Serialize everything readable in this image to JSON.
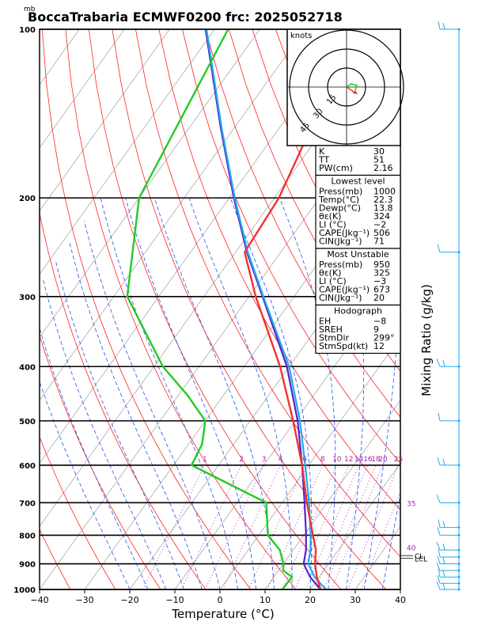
{
  "title": "BoccaTrabaria ECMWF0200 frc: 2025052718",
  "pressure_unit": "mb",
  "chart_data": {
    "type": "skew-t",
    "xlabel": "Temperature (°C)",
    "ylabel_right": "Mixing Ratio (g/kg)",
    "x_ticks": [
      -40,
      -30,
      -20,
      -10,
      0,
      10,
      20,
      30,
      40
    ],
    "p_ticks": [
      100,
      200,
      300,
      400,
      500,
      600,
      700,
      800,
      900,
      1000
    ],
    "temperature": [
      {
        "p": 1000,
        "t": 22.3
      },
      {
        "p": 950,
        "t": 19.5
      },
      {
        "p": 900,
        "t": 17.0
      },
      {
        "p": 850,
        "t": 15.0
      },
      {
        "p": 800,
        "t": 12.0
      },
      {
        "p": 700,
        "t": 5.5
      },
      {
        "p": 600,
        "t": -1.5
      },
      {
        "p": 500,
        "t": -10.5
      },
      {
        "p": 400,
        "t": -22.0
      },
      {
        "p": 300,
        "t": -38.5
      },
      {
        "p": 250,
        "t": -48.0
      },
      {
        "p": 200,
        "t": -49.0
      },
      {
        "p": 150,
        "t": -53.0
      },
      {
        "p": 100,
        "t": -58.0
      }
    ],
    "dewpoint": [
      {
        "p": 1000,
        "t": 13.8
      },
      {
        "p": 950,
        "t": 14.0
      },
      {
        "p": 925,
        "t": 11.0
      },
      {
        "p": 900,
        "t": 10.0
      },
      {
        "p": 850,
        "t": 7.0
      },
      {
        "p": 800,
        "t": 2.0
      },
      {
        "p": 700,
        "t": -3.5
      },
      {
        "p": 600,
        "t": -26.0
      },
      {
        "p": 550,
        "t": -27.0
      },
      {
        "p": 500,
        "t": -30.0
      },
      {
        "p": 450,
        "t": -38.0
      },
      {
        "p": 400,
        "t": -48.0
      },
      {
        "p": 300,
        "t": -67.0
      },
      {
        "p": 200,
        "t": -80.0
      },
      {
        "p": 100,
        "t": -87.0
      }
    ],
    "parcel": [
      {
        "p": 1000,
        "t": 22.3
      },
      {
        "p": 950,
        "t": 18.0
      },
      {
        "p": 900,
        "t": 14.5
      },
      {
        "p": 850,
        "t": 12.8
      },
      {
        "p": 800,
        "t": 10.5
      },
      {
        "p": 700,
        "t": 5.0
      },
      {
        "p": 600,
        "t": -1.5
      },
      {
        "p": 500,
        "t": -9.5
      },
      {
        "p": 400,
        "t": -20.5
      },
      {
        "p": 300,
        "t": -37.0
      },
      {
        "p": 250,
        "t": -47.5
      },
      {
        "p": 200,
        "t": -59.0
      },
      {
        "p": 150,
        "t": -73.0
      },
      {
        "p": 100,
        "t": -92.0
      }
    ],
    "virtual_parcel": [
      {
        "p": 1000,
        "t": 23.5
      },
      {
        "p": 950,
        "t": 19.0
      },
      {
        "p": 900,
        "t": 15.5
      },
      {
        "p": 850,
        "t": 13.8
      },
      {
        "p": 800,
        "t": 11.5
      },
      {
        "p": 700,
        "t": 6.0
      },
      {
        "p": 600,
        "t": -0.8
      },
      {
        "p": 500,
        "t": -9.0
      },
      {
        "p": 400,
        "t": -20.0
      },
      {
        "p": 300,
        "t": -36.8
      },
      {
        "p": 250,
        "t": -47.3
      },
      {
        "p": 200,
        "t": -58.8
      },
      {
        "p": 150,
        "t": -72.8
      },
      {
        "p": 100,
        "t": -91.8
      }
    ],
    "mixing_ratio_labels": [
      "1",
      "2",
      "3",
      "4",
      "6",
      "8",
      "10",
      "12",
      "14",
      "16",
      "18",
      "20",
      "25",
      "30"
    ],
    "right_markers": [
      {
        "p": 700,
        "label": "35"
      },
      {
        "p": 840,
        "label": "40"
      },
      {
        "p": 870,
        "label": "CL"
      },
      {
        "p": 880,
        "label": "LCL"
      }
    ],
    "hodograph": {
      "label": "knots",
      "ring_labels": [
        "15",
        "30",
        "45"
      ]
    },
    "indices": {
      "general": [
        {
          "label": "K",
          "value": "30"
        },
        {
          "label": "TT",
          "value": "51"
        },
        {
          "label": "PW(cm)",
          "value": "2.16"
        }
      ],
      "lowest_level": {
        "heading": "Lowest level",
        "rows": [
          {
            "label": "Press(mb)",
            "value": "1000"
          },
          {
            "label": "Temp(°C)",
            "value": "22.3"
          },
          {
            "label": "Dewp(°C)",
            "value": "13.8"
          },
          {
            "label": "θε(K)",
            "value": "324"
          },
          {
            "label": "LI (°C)",
            "value": "−2"
          },
          {
            "label": "CAPE(Jkg⁻¹)",
            "value": "506"
          },
          {
            "label": "CIN(Jkg⁻¹)",
            "value": "71"
          }
        ]
      },
      "most_unstable": {
        "heading": "Most Unstable",
        "rows": [
          {
            "label": "Press(mb)",
            "value": "950"
          },
          {
            "label": "θε(K)",
            "value": "325"
          },
          {
            "label": "LI (°C)",
            "value": "−3"
          },
          {
            "label": "CAPE(Jkg⁻¹)",
            "value": "673"
          },
          {
            "label": "CIN(Jkg⁻¹)",
            "value": "20"
          }
        ]
      },
      "hodograph_box": {
        "heading": "Hodograph",
        "rows": [
          {
            "label": "EH",
            "value": "−8"
          },
          {
            "label": "SREH",
            "value": "9"
          },
          {
            "label": "StmDir",
            "value": "299°"
          },
          {
            "label": "StmSpd(kt)",
            "value": "12"
          }
        ]
      }
    },
    "colors": {
      "temperature": "#ee3333",
      "dewpoint": "#22cc22",
      "parcel": "#5522cc",
      "virtual_parcel": "#22aaee",
      "isotherm": "#aaaaaa",
      "dry_adiabat": "#ff2222",
      "moist_adiabat": "#2255ee",
      "mixing_ratio": "#aa22aa",
      "wind": "#22aaee"
    }
  }
}
